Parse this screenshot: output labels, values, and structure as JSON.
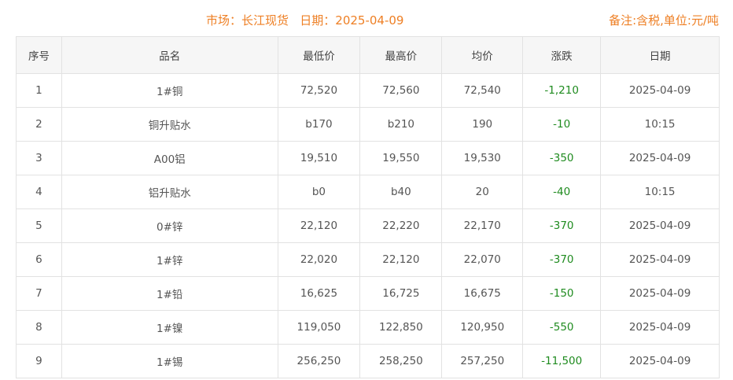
{
  "header": {
    "title": "市场：长江现货   日期：2025-04-09",
    "note": "备注:含税,单位:元/吨"
  },
  "colors": {
    "accent": "#ee7f24",
    "change_down": "#1f8b1f"
  },
  "table": {
    "columns": [
      "序号",
      "品名",
      "最低价",
      "最高价",
      "均价",
      "涨跌",
      "日期"
    ],
    "rows": [
      [
        "1",
        "1#铜",
        "72,520",
        "72,560",
        "72,540",
        "-1,210",
        "2025-04-09"
      ],
      [
        "2",
        "铜升贴水",
        "b170",
        "b210",
        "190",
        "-10",
        "10:15"
      ],
      [
        "3",
        "A00铝",
        "19,510",
        "19,550",
        "19,530",
        "-350",
        "2025-04-09"
      ],
      [
        "4",
        "铝升贴水",
        "b0",
        "b40",
        "20",
        "-40",
        "10:15"
      ],
      [
        "5",
        "0#锌",
        "22,120",
        "22,220",
        "22,170",
        "-370",
        "2025-04-09"
      ],
      [
        "6",
        "1#锌",
        "22,020",
        "22,120",
        "22,070",
        "-370",
        "2025-04-09"
      ],
      [
        "7",
        "1#铅",
        "16,625",
        "16,725",
        "16,675",
        "-150",
        "2025-04-09"
      ],
      [
        "8",
        "1#镍",
        "119,050",
        "122,850",
        "120,950",
        "-550",
        "2025-04-09"
      ],
      [
        "9",
        "1#锡",
        "256,250",
        "258,250",
        "257,250",
        "-11,500",
        "2025-04-09"
      ]
    ]
  }
}
